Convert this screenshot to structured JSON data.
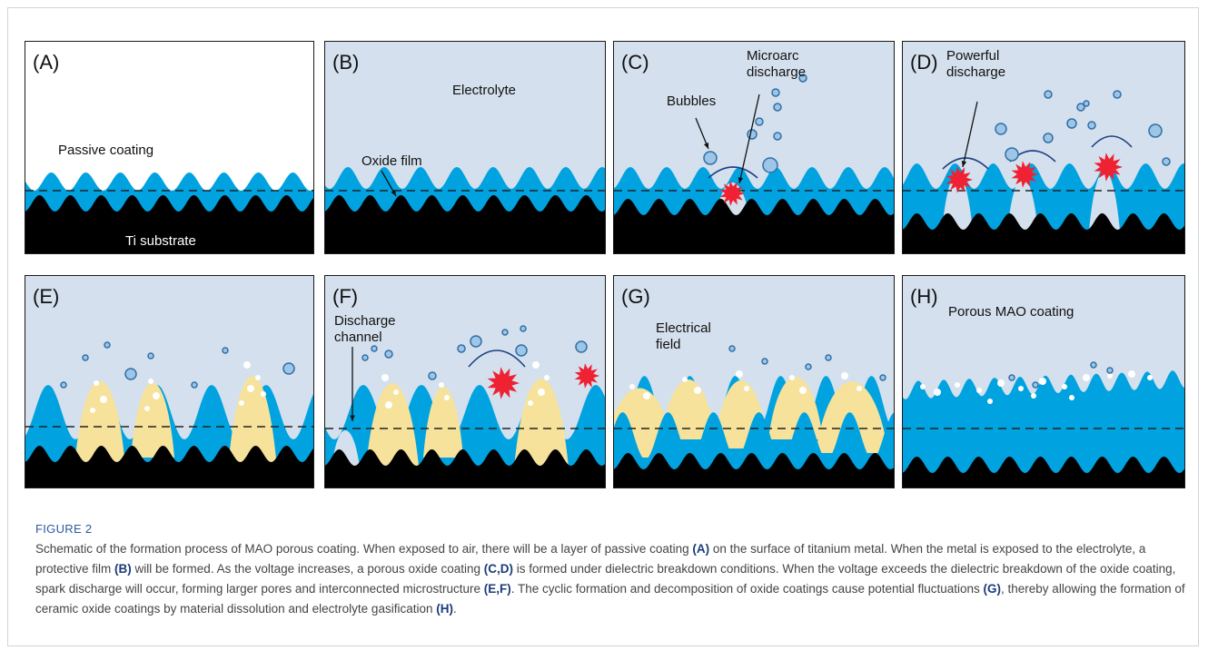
{
  "panels": [
    {
      "letter": "(A)",
      "labels": {
        "passive": "Passive coating",
        "substrate": "Ti substrate"
      }
    },
    {
      "letter": "(B)",
      "labels": {
        "electrolyte": "Electrolyte",
        "oxide": "Oxide film"
      }
    },
    {
      "letter": "(C)",
      "labels": {
        "bubbles": "Bubbles",
        "micro1": "Microarc",
        "micro2": "discharge"
      }
    },
    {
      "letter": "(D)",
      "labels": {
        "pow1": "Powerful",
        "pow2": "discharge"
      }
    },
    {
      "letter": "(E)",
      "labels": {}
    },
    {
      "letter": "(F)",
      "labels": {
        "ch1": "Discharge",
        "ch2": "channel"
      }
    },
    {
      "letter": "(G)",
      "labels": {
        "f1": "Electrical",
        "f2": "field"
      }
    },
    {
      "letter": "(H)",
      "labels": {
        "porous": "Porous MAO coating"
      }
    }
  ],
  "caption": {
    "title": "FIGURE 2",
    "segments": [
      {
        "t": "Schematic of the formation process of MAO porous coating. When exposed to air, there will be a layer of passive coating ",
        "b": false
      },
      {
        "t": "(A)",
        "b": true
      },
      {
        "t": " on the surface of titanium metal. When the metal is exposed to the electrolyte, a protective film ",
        "b": false
      },
      {
        "t": "(B)",
        "b": true
      },
      {
        "t": " will be formed. As the voltage increases, a porous oxide coating ",
        "b": false
      },
      {
        "t": "(C,D)",
        "b": true
      },
      {
        "t": " is formed under dielectric breakdown conditions. When the voltage exceeds the dielectric breakdown of the oxide coating, spark discharge will occur, forming larger pores and interconnected microstructure ",
        "b": false
      },
      {
        "t": "(E,F)",
        "b": true
      },
      {
        "t": ". The cyclic formation and decomposition of oxide coatings cause potential fluctuations ",
        "b": false
      },
      {
        "t": "(G)",
        "b": true
      },
      {
        "t": ", thereby allowing the formation of ceramic oxide coatings by material dissolution and electrolyte gasification ",
        "b": false
      },
      {
        "t": "(H)",
        "b": true
      },
      {
        "t": ".",
        "b": false
      }
    ]
  },
  "colors": {
    "electrolyte": "#d4e0ed",
    "oxide": "#00a3e0",
    "substrate": "#000000",
    "ceramic": "#f6e29a",
    "spark": "#ee2233",
    "bubble_fill": "#9ec5e5",
    "bubble_stroke": "#2f6fa8",
    "caption_title": "#2d5aa0"
  }
}
